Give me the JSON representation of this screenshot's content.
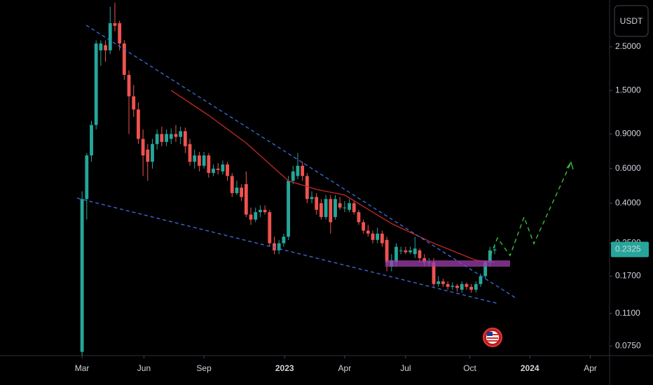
{
  "chart_data": {
    "type": "candlestick",
    "log_scale": true,
    "currency": "USDT",
    "last_price": 0.2325,
    "up_color": "#26a69a",
    "down_color": "#ef5350",
    "ma_color": "#c62828",
    "ylim": [
      0.067,
      4.33
    ],
    "yticks": [
      {
        "value": 2.5,
        "label": "2.5000"
      },
      {
        "value": 1.5,
        "label": "1.5000"
      },
      {
        "value": 0.9,
        "label": "0.9000"
      },
      {
        "value": 0.6,
        "label": "0.6000"
      },
      {
        "value": 0.4,
        "label": "0.4000"
      },
      {
        "value": 0.25,
        "label": "0.2500"
      },
      {
        "value": 0.17,
        "label": "0.1700"
      },
      {
        "value": 0.11,
        "label": "0.1100"
      },
      {
        "value": 0.075,
        "label": "0.0750"
      }
    ],
    "xlim": [
      -17.5,
      112.5
    ],
    "xticks": [
      {
        "value": 0,
        "label": "Mar"
      },
      {
        "value": 13.2,
        "label": "Jun"
      },
      {
        "value": 26,
        "label": "Sep"
      },
      {
        "value": 43.2,
        "label": "2023"
      },
      {
        "value": 56,
        "label": "Apr"
      },
      {
        "value": 69,
        "label": "Jul"
      },
      {
        "value": 82.7,
        "label": "Oct"
      },
      {
        "value": 95.5,
        "label": "2024"
      },
      {
        "value": 108.4,
        "label": "Apr"
      }
    ],
    "ohlc": [
      [
        0.07,
        0.46,
        0.067,
        0.42
      ],
      [
        0.42,
        0.72,
        0.33,
        0.7
      ],
      [
        0.7,
        1.05,
        0.65,
        1.0
      ],
      [
        1.0,
        2.7,
        0.95,
        2.6
      ],
      [
        2.4,
        2.7,
        2.0,
        2.6
      ],
      [
        2.55,
        2.7,
        2.1,
        2.4
      ],
      [
        2.4,
        4.0,
        2.3,
        3.3
      ],
      [
        3.3,
        4.2,
        3.0,
        3.2
      ],
      [
        3.3,
        3.4,
        2.4,
        2.6
      ],
      [
        2.6,
        2.7,
        1.7,
        1.8
      ],
      [
        1.8,
        1.9,
        0.9,
        1.4
      ],
      [
        1.4,
        1.6,
        1.1,
        1.2
      ],
      [
        1.2,
        1.3,
        0.8,
        0.85
      ],
      [
        0.85,
        0.95,
        0.55,
        0.7
      ],
      [
        0.75,
        0.8,
        0.52,
        0.65
      ],
      [
        0.65,
        0.85,
        0.6,
        0.8
      ],
      [
        0.8,
        0.95,
        0.75,
        0.9
      ],
      [
        0.9,
        0.98,
        0.78,
        0.82
      ],
      [
        0.82,
        0.95,
        0.78,
        0.9
      ],
      [
        0.85,
        0.96,
        0.8,
        0.9
      ],
      [
        0.9,
        1.0,
        0.82,
        0.87
      ],
      [
        0.87,
        0.98,
        0.8,
        0.93
      ],
      [
        0.93,
        0.97,
        0.72,
        0.78
      ],
      [
        0.8,
        0.85,
        0.62,
        0.65
      ],
      [
        0.65,
        0.75,
        0.6,
        0.7
      ],
      [
        0.7,
        0.73,
        0.58,
        0.62
      ],
      [
        0.62,
        0.73,
        0.6,
        0.7
      ],
      [
        0.7,
        0.72,
        0.54,
        0.57
      ],
      [
        0.57,
        0.63,
        0.55,
        0.6
      ],
      [
        0.6,
        0.64,
        0.56,
        0.59
      ],
      [
        0.58,
        0.66,
        0.56,
        0.63
      ],
      [
        0.63,
        0.65,
        0.52,
        0.55
      ],
      [
        0.55,
        0.57,
        0.43,
        0.45
      ],
      [
        0.45,
        0.52,
        0.44,
        0.48
      ],
      [
        0.48,
        0.5,
        0.41,
        0.43
      ],
      [
        0.5,
        0.58,
        0.34,
        0.35
      ],
      [
        0.35,
        0.38,
        0.31,
        0.33
      ],
      [
        0.33,
        0.38,
        0.32,
        0.36
      ],
      [
        0.36,
        0.39,
        0.34,
        0.37
      ],
      [
        0.37,
        0.39,
        0.35,
        0.36
      ],
      [
        0.36,
        0.37,
        0.24,
        0.25
      ],
      [
        0.25,
        0.27,
        0.22,
        0.23
      ],
      [
        0.23,
        0.26,
        0.22,
        0.25
      ],
      [
        0.25,
        0.28,
        0.24,
        0.27
      ],
      [
        0.27,
        0.55,
        0.26,
        0.52
      ],
      [
        0.52,
        0.62,
        0.5,
        0.58
      ],
      [
        0.55,
        0.72,
        0.53,
        0.62
      ],
      [
        0.62,
        0.65,
        0.52,
        0.55
      ],
      [
        0.55,
        0.57,
        0.4,
        0.42
      ],
      [
        0.42,
        0.46,
        0.4,
        0.43
      ],
      [
        0.43,
        0.45,
        0.35,
        0.37
      ],
      [
        0.4,
        0.42,
        0.33,
        0.34
      ],
      [
        0.34,
        0.44,
        0.33,
        0.42
      ],
      [
        0.42,
        0.44,
        0.28,
        0.32
      ],
      [
        0.34,
        0.44,
        0.33,
        0.42
      ],
      [
        0.4,
        0.43,
        0.37,
        0.38
      ],
      [
        0.38,
        0.41,
        0.36,
        0.38
      ],
      [
        0.37,
        0.42,
        0.36,
        0.4
      ],
      [
        0.4,
        0.41,
        0.35,
        0.36
      ],
      [
        0.36,
        0.37,
        0.31,
        0.32
      ],
      [
        0.32,
        0.33,
        0.28,
        0.29
      ],
      [
        0.29,
        0.31,
        0.27,
        0.28
      ],
      [
        0.28,
        0.29,
        0.25,
        0.26
      ],
      [
        0.26,
        0.3,
        0.25,
        0.28
      ],
      [
        0.28,
        0.29,
        0.24,
        0.25
      ],
      [
        0.26,
        0.27,
        0.18,
        0.2
      ],
      [
        0.19,
        0.22,
        0.18,
        0.205
      ],
      [
        0.2,
        0.25,
        0.19,
        0.24
      ],
      [
        0.23,
        0.24,
        0.22,
        0.23
      ],
      [
        0.23,
        0.24,
        0.22,
        0.225
      ],
      [
        0.225,
        0.24,
        0.22,
        0.23
      ],
      [
        0.22,
        0.27,
        0.21,
        0.235
      ],
      [
        0.23,
        0.235,
        0.2,
        0.21
      ],
      [
        0.21,
        0.22,
        0.19,
        0.2
      ],
      [
        0.2,
        0.21,
        0.19,
        0.2
      ],
      [
        0.2,
        0.21,
        0.15,
        0.155
      ],
      [
        0.155,
        0.17,
        0.15,
        0.16
      ],
      [
        0.16,
        0.165,
        0.15,
        0.155
      ],
      [
        0.155,
        0.16,
        0.145,
        0.15
      ],
      [
        0.15,
        0.158,
        0.145,
        0.152
      ],
      [
        0.152,
        0.155,
        0.142,
        0.148
      ],
      [
        0.145,
        0.16,
        0.14,
        0.155
      ],
      [
        0.155,
        0.158,
        0.145,
        0.15
      ],
      [
        0.15,
        0.155,
        0.14,
        0.145
      ],
      [
        0.145,
        0.16,
        0.14,
        0.155
      ],
      [
        0.155,
        0.175,
        0.15,
        0.17
      ],
      [
        0.17,
        0.205,
        0.165,
        0.2
      ],
      [
        0.2,
        0.24,
        0.19,
        0.23
      ],
      [
        0.23,
        0.245,
        0.22,
        0.2325
      ]
    ],
    "ma": {
      "x": [
        19,
        27,
        35,
        44,
        50,
        56,
        66,
        75,
        84,
        88
      ],
      "values": [
        1.5,
        1.12,
        0.81,
        0.52,
        0.47,
        0.44,
        0.315,
        0.25,
        0.205,
        0.2
      ]
    }
  }
}
